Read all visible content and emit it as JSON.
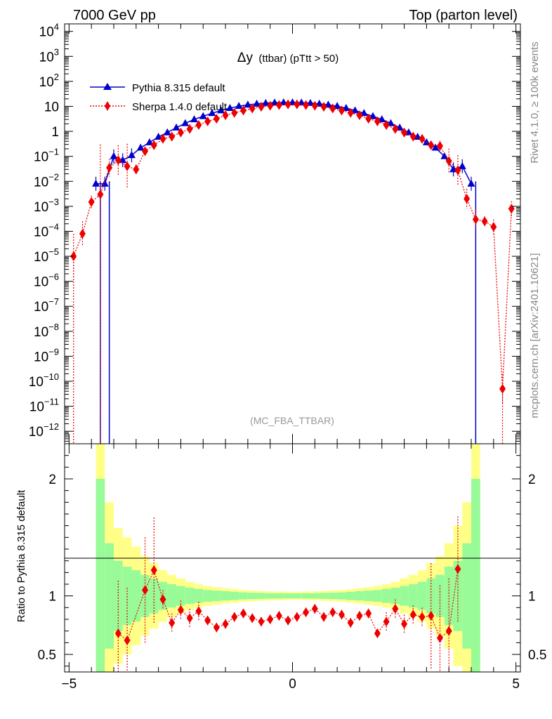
{
  "header": {
    "left": "7000 GeV pp",
    "right": "Top (parton level)",
    "side_top": "Rivet 4.1.0, ≥ 100k events",
    "side_bottom": "mcplots.cern.ch [arXiv:2401.10621]"
  },
  "chart_data": {
    "type": "line",
    "title": "Δy (ttbar) (pTtt > 50)",
    "title_main": "Δy",
    "title_sub": "(ttbar) (pTtt > 50)",
    "watermark": "(MC_FBA_TTBAR)",
    "xlabel": "",
    "ylabel": "",
    "ratio_ylabel": "Ratio to Pythia 8.315 default",
    "xlim": [
      -5.1,
      5.1
    ],
    "ylim_log10": [
      -12.5,
      4.3
    ],
    "ratio_ylim": [
      0.35,
      2.3
    ],
    "x_ticks": [
      "−5",
      "0",
      "5"
    ],
    "y_ticks": [
      "10^4",
      "10^3",
      "10^2",
      "10",
      "1",
      "10^-1",
      "10^-2",
      "10^-3",
      "10^-4",
      "10^-5",
      "10^-6",
      "10^-7",
      "10^-8",
      "10^-9",
      "10^-10",
      "10^-11",
      "10^-12"
    ],
    "ratio_ticks": [
      "0.5",
      "1",
      "2"
    ],
    "legend": [
      {
        "label": "Pythia 8.315 default",
        "color": "#0000cc",
        "marker": "triangle"
      },
      {
        "label": "Sherpa 1.4.0 default",
        "color": "#ee0000",
        "marker": "diamond"
      }
    ],
    "series": [
      {
        "name": "Pythia 8.315 default",
        "color": "#0000cc",
        "x": [
          -4.4,
          -4.2,
          -4.0,
          -3.8,
          -3.6,
          -3.4,
          -3.2,
          -3.0,
          -2.8,
          -2.6,
          -2.4,
          -2.2,
          -2.0,
          -1.8,
          -1.6,
          -1.4,
          -1.2,
          -1.0,
          -0.8,
          -0.6,
          -0.4,
          -0.2,
          0.0,
          0.2,
          0.4,
          0.6,
          0.8,
          1.0,
          1.2,
          1.4,
          1.6,
          1.8,
          2.0,
          2.2,
          2.4,
          2.6,
          2.8,
          3.0,
          3.2,
          3.4,
          3.6,
          3.8,
          4.0
        ],
        "y": [
          0.008,
          0.008,
          0.1,
          0.07,
          0.11,
          0.22,
          0.36,
          0.6,
          0.9,
          1.4,
          2.1,
          3.0,
          4.0,
          5.3,
          6.8,
          8.5,
          10.2,
          11.5,
          12.6,
          13.5,
          14.0,
          14.2,
          14.2,
          14.0,
          13.5,
          12.6,
          11.5,
          10.2,
          8.5,
          6.8,
          5.3,
          4.0,
          3.0,
          2.1,
          1.4,
          0.9,
          0.6,
          0.36,
          0.22,
          0.1,
          0.03,
          0.04,
          0.008
        ],
        "drop_to_zero_edges": [
          -4.3,
          -4.1,
          4.1
        ]
      },
      {
        "name": "Sherpa 1.4.0 default",
        "color": "#ee0000",
        "x": [
          -4.9,
          -4.7,
          -4.5,
          -4.3,
          -4.1,
          -3.9,
          -3.7,
          -3.5,
          -3.3,
          -3.1,
          -2.9,
          -2.7,
          -2.5,
          -2.3,
          -2.1,
          -1.9,
          -1.7,
          -1.5,
          -1.3,
          -1.1,
          -0.9,
          -0.7,
          -0.5,
          -0.3,
          -0.1,
          0.1,
          0.3,
          0.5,
          0.7,
          0.9,
          1.1,
          1.3,
          1.5,
          1.7,
          1.9,
          2.1,
          2.3,
          2.5,
          2.7,
          2.9,
          3.1,
          3.3,
          3.5,
          3.7,
          3.9,
          4.1,
          4.3,
          4.5,
          4.7,
          4.9
        ],
        "y": [
          1e-05,
          8e-05,
          0.0015,
          0.003,
          0.035,
          0.07,
          0.04,
          0.03,
          0.16,
          0.28,
          0.5,
          0.62,
          0.9,
          1.25,
          1.8,
          2.5,
          3.2,
          4.4,
          5.5,
          6.8,
          8.2,
          9.6,
          10.6,
          11.3,
          12.0,
          12.0,
          11.3,
          10.6,
          9.6,
          8.2,
          6.8,
          5.5,
          4.4,
          3.2,
          2.5,
          1.8,
          1.25,
          0.9,
          0.62,
          0.5,
          0.28,
          0.26,
          0.065,
          0.028,
          0.002,
          0.0003,
          0.00025,
          0.00015,
          5e-11,
          0.0008
        ],
        "errors": [
          0.9,
          0.5,
          0.25,
          2.0,
          0.35,
          0.6,
          0.9,
          0.2,
          0.1,
          0.08,
          0.06,
          0.05,
          0.04,
          0.04,
          0.04,
          0.03,
          0.03,
          0.03,
          0.03,
          0.03,
          0.03,
          0.03,
          0.03,
          0.03,
          0.03,
          0.03,
          0.03,
          0.03,
          0.03,
          0.03,
          0.03,
          0.03,
          0.03,
          0.03,
          0.04,
          0.04,
          0.04,
          0.05,
          0.06,
          0.08,
          0.1,
          0.2,
          0.5,
          0.6,
          0.4,
          0.4,
          0.2,
          0.3,
          0.6,
          0.3
        ]
      }
    ],
    "ratio": {
      "sherpa_x": [
        -3.9,
        -3.7,
        -3.3,
        -3.1,
        -2.9,
        -2.7,
        -2.5,
        -2.3,
        -2.1,
        -1.9,
        -1.7,
        -1.5,
        -1.3,
        -1.1,
        -0.9,
        -0.7,
        -0.5,
        -0.3,
        -0.1,
        0.1,
        0.3,
        0.5,
        0.7,
        0.9,
        1.1,
        1.3,
        1.5,
        1.7,
        1.9,
        2.1,
        2.3,
        2.5,
        2.7,
        2.9,
        3.1,
        3.3,
        3.5,
        3.7
      ],
      "sherpa_y": [
        0.68,
        0.62,
        1.05,
        1.22,
        0.97,
        0.77,
        0.88,
        0.81,
        0.87,
        0.79,
        0.73,
        0.76,
        0.82,
        0.85,
        0.81,
        0.78,
        0.8,
        0.83,
        0.79,
        0.82,
        0.86,
        0.89,
        0.82,
        0.86,
        0.84,
        0.77,
        0.83,
        0.85,
        0.68,
        0.78,
        0.89,
        0.76,
        0.84,
        0.82,
        0.83,
        0.64,
        0.7,
        1.23
      ],
      "band_edges": [
        -4.4,
        -4.2,
        -4.0,
        -3.8,
        -3.6,
        -3.4,
        -3.2,
        -3.0,
        -2.8,
        -2.6,
        -2.4,
        -2.2,
        -2.0,
        -1.8,
        -1.6,
        -1.4,
        -1.2,
        -1.0,
        -0.8,
        -0.6,
        -0.4,
        -0.2,
        0.0,
        0.2,
        0.4,
        0.6,
        0.8,
        1.0,
        1.2,
        1.4,
        1.6,
        1.8,
        2.0,
        2.2,
        2.4,
        2.6,
        2.8,
        3.0,
        3.2,
        3.4,
        3.6,
        3.8,
        4.0,
        4.2
      ],
      "green_hw": [
        1.0,
        0.45,
        0.3,
        0.25,
        0.22,
        0.18,
        0.15,
        0.12,
        0.1,
        0.085,
        0.07,
        0.06,
        0.05,
        0.045,
        0.04,
        0.035,
        0.03,
        0.027,
        0.025,
        0.023,
        0.022,
        0.021,
        0.021,
        0.022,
        0.023,
        0.025,
        0.027,
        0.03,
        0.035,
        0.04,
        0.045,
        0.05,
        0.06,
        0.07,
        0.085,
        0.1,
        0.12,
        0.15,
        0.18,
        0.25,
        0.3,
        0.45,
        1.0
      ],
      "yellow_hw": [
        1.4,
        0.8,
        0.58,
        0.5,
        0.42,
        0.34,
        0.28,
        0.22,
        0.18,
        0.15,
        0.12,
        0.1,
        0.085,
        0.075,
        0.065,
        0.058,
        0.05,
        0.046,
        0.042,
        0.039,
        0.037,
        0.035,
        0.035,
        0.037,
        0.039,
        0.042,
        0.046,
        0.05,
        0.058,
        0.065,
        0.075,
        0.085,
        0.1,
        0.12,
        0.15,
        0.18,
        0.22,
        0.28,
        0.34,
        0.45,
        0.6,
        0.8,
        1.4
      ]
    }
  },
  "colors": {
    "pythia": "#0000cc",
    "sherpa": "#ee0000",
    "band_green": "#98fb98",
    "band_yellow": "#ffff88",
    "watermark": "#999999",
    "side_text": "#888888"
  }
}
